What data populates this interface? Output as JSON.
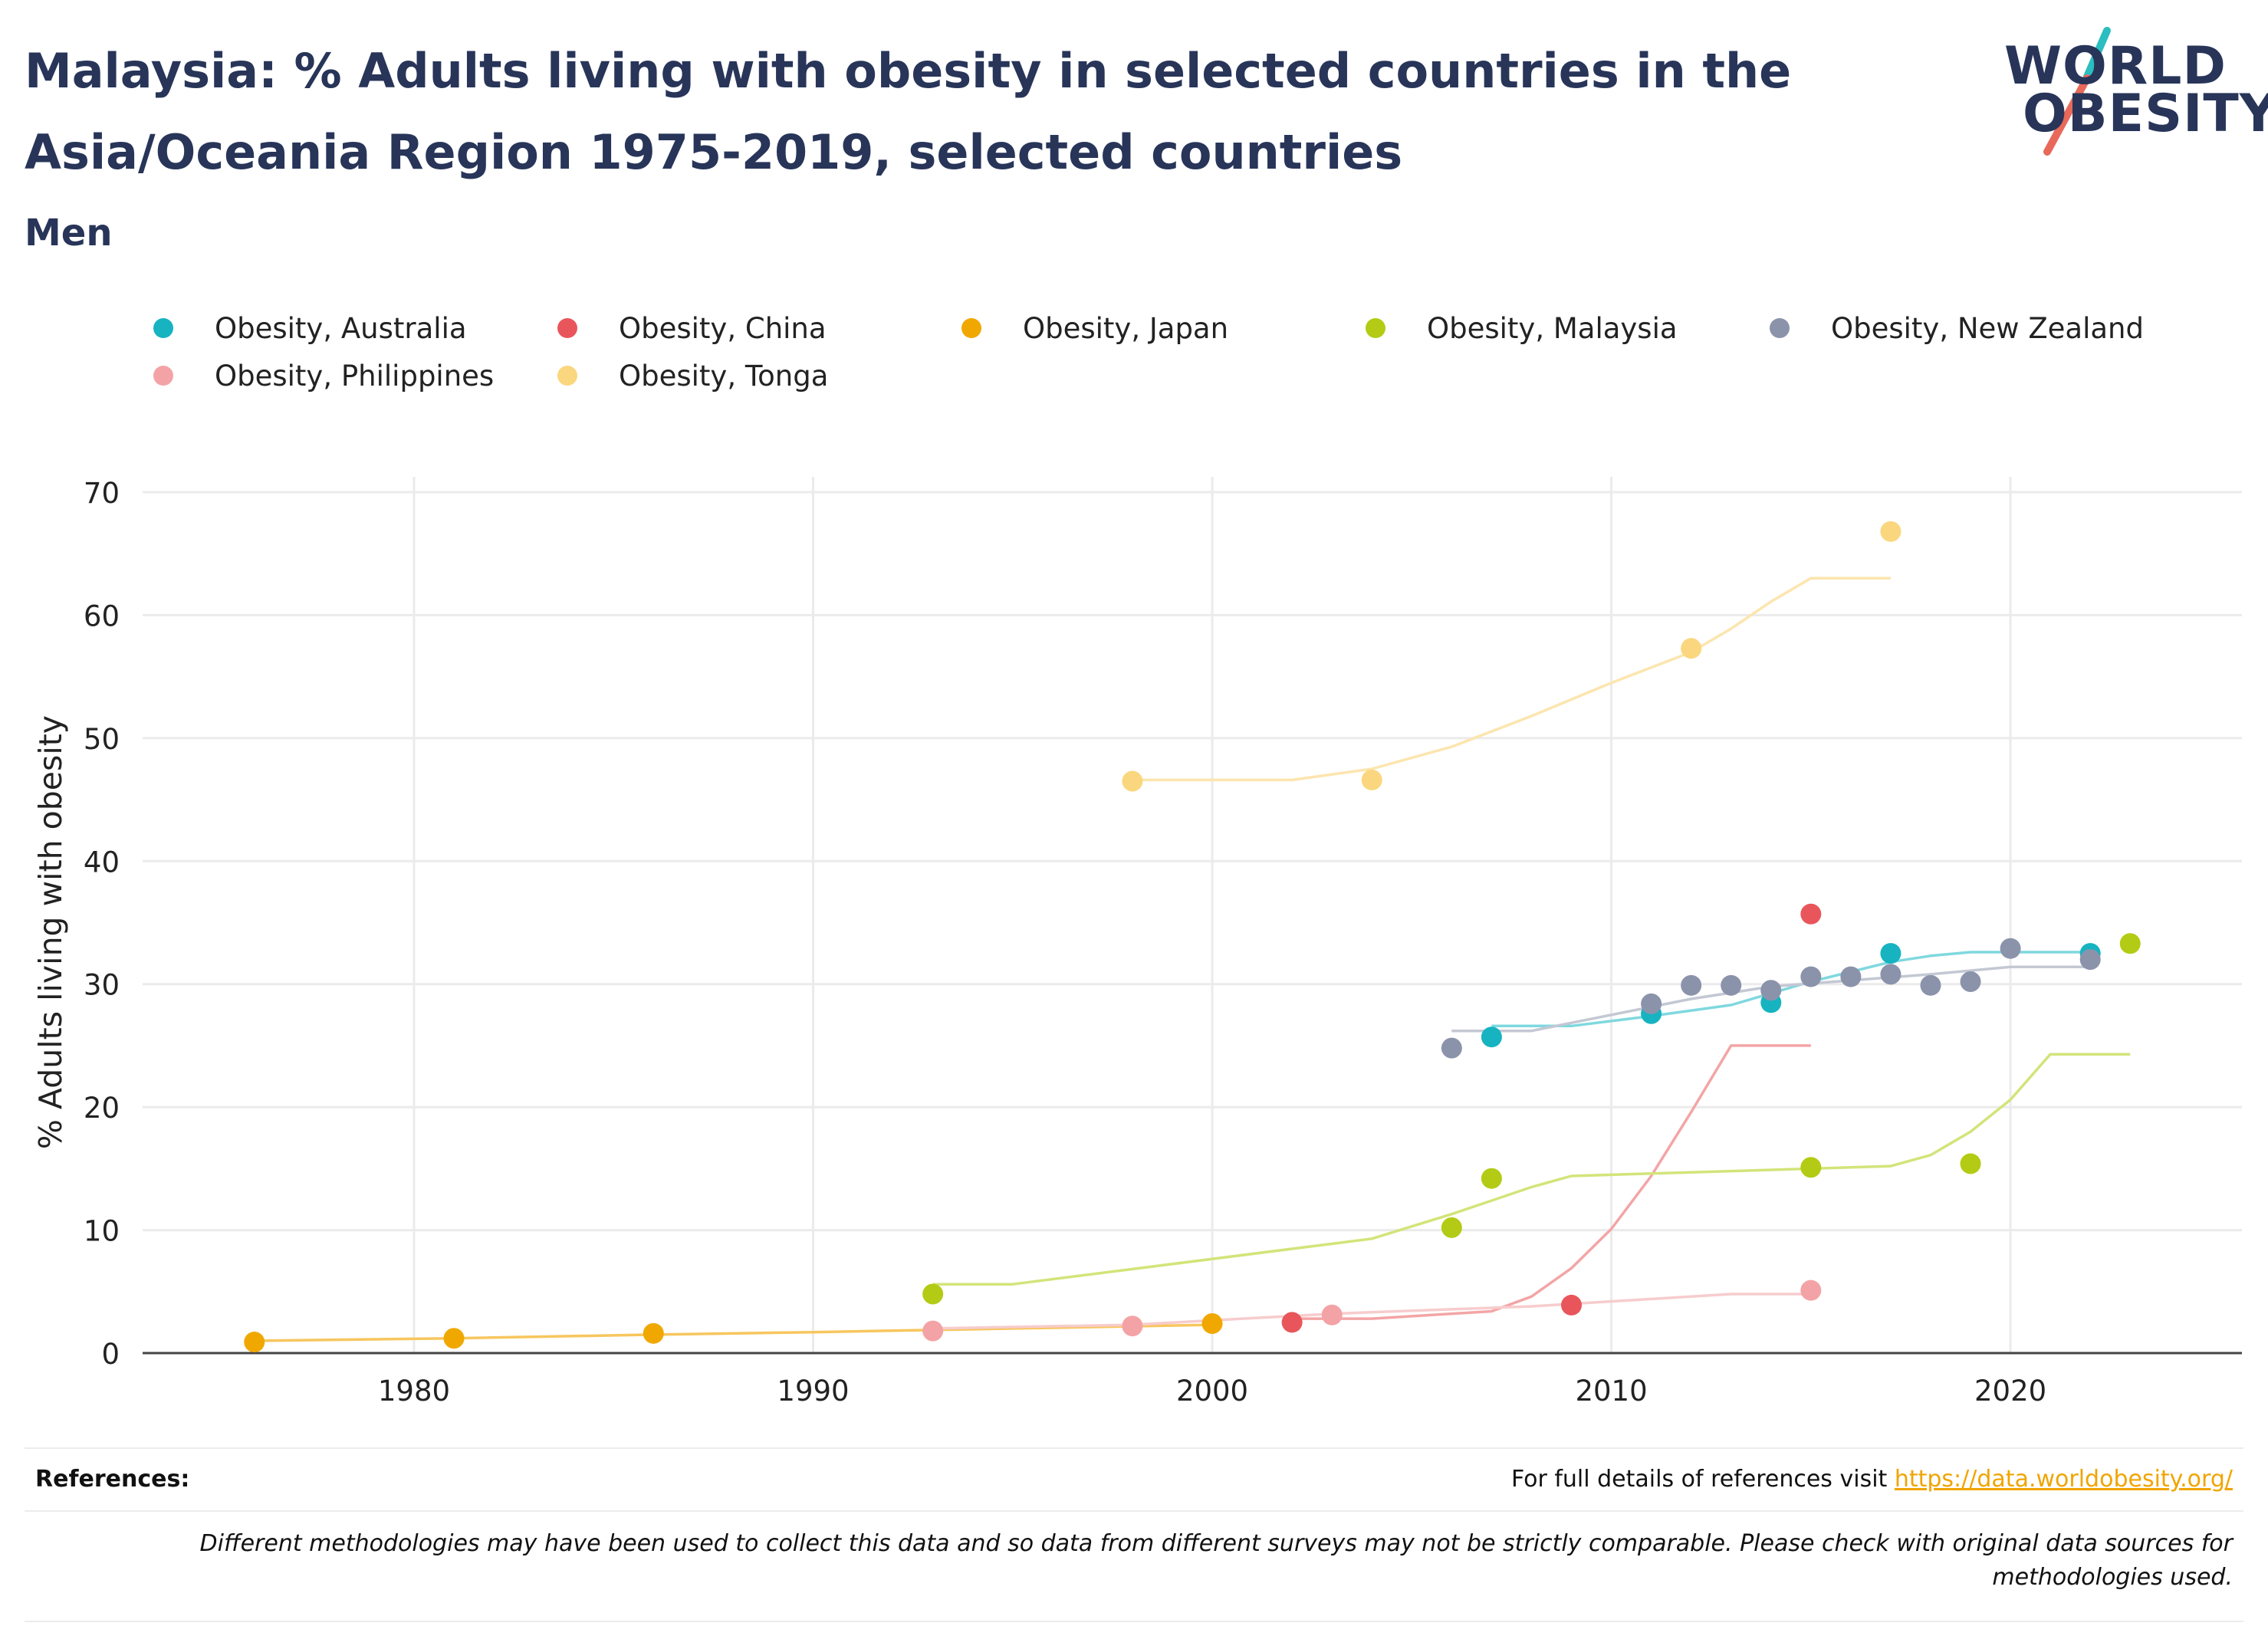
{
  "header": {
    "title": "Malaysia: % Adults living with obesity in selected countries in the Asia/Oceania Region 1975-2019, selected countries",
    "subtitle": "Men",
    "logo_line1": "WORLD",
    "logo_line2": "OBESITY",
    "logo_colors": {
      "text": "#283559",
      "slash_top": "#2bbdc0",
      "slash_bottom": "#e8695a"
    }
  },
  "footer": {
    "references_label": "References:",
    "references_text": "For full details of references visit",
    "references_link": "https://data.worldobesity.org/",
    "disclaimer": "Different methodologies may have been used to collect this data and so data from different surveys may not be strictly comparable. Please check with original data sources for methodologies used."
  },
  "chart_data": {
    "type": "scatter",
    "ylabel": "% Adults living with obesity",
    "xlabel": "",
    "xlim": [
      1973.2,
      2025.8
    ],
    "ylim": [
      0,
      70
    ],
    "x_ticks": [
      1980,
      1990,
      2000,
      2010,
      2020
    ],
    "y_ticks": [
      0,
      10,
      20,
      30,
      40,
      50,
      60,
      70
    ],
    "grid": true,
    "legend_position": "top",
    "series": [
      {
        "name": "Obesity, Australia",
        "color": "#17b3c1",
        "line_color": "#7fd8df",
        "points": [
          [
            2007,
            25.7
          ],
          [
            2011,
            27.6
          ],
          [
            2014,
            28.5
          ],
          [
            2017,
            32.5
          ],
          [
            2022,
            32.5
          ]
        ],
        "trend": [
          [
            2007,
            26.6
          ],
          [
            2009,
            26.6
          ],
          [
            2011,
            27.4
          ],
          [
            2013,
            28.3
          ],
          [
            2015,
            30.2
          ],
          [
            2017,
            31.8
          ],
          [
            2018,
            32.3
          ],
          [
            2019,
            32.6
          ],
          [
            2020,
            32.6
          ],
          [
            2022,
            32.6
          ]
        ]
      },
      {
        "name": "Obesity, China",
        "color": "#e8565c",
        "line_color": "#f3a5a6",
        "points": [
          [
            2002,
            2.5
          ],
          [
            2009,
            3.9
          ],
          [
            2015,
            35.7
          ]
        ],
        "trend": [
          [
            2002,
            2.8
          ],
          [
            2004,
            2.8
          ],
          [
            2005,
            3.0
          ],
          [
            2007,
            3.4
          ],
          [
            2008,
            4.6
          ],
          [
            2009,
            6.9
          ],
          [
            2010,
            10.1
          ],
          [
            2011,
            14.4
          ],
          [
            2012,
            19.6
          ],
          [
            2013,
            25.0
          ],
          [
            2015,
            25.0
          ]
        ]
      },
      {
        "name": "Obesity, Japan",
        "color": "#f0a800",
        "line_color": "#f7c65e",
        "points": [
          [
            1976,
            0.9
          ],
          [
            1981,
            1.2
          ],
          [
            1986,
            1.6
          ],
          [
            2000,
            2.4
          ]
        ],
        "trend": [
          [
            1976,
            1.0
          ],
          [
            1981,
            1.2
          ],
          [
            1986,
            1.5
          ],
          [
            1990,
            1.7
          ],
          [
            1995,
            2.0
          ],
          [
            2000,
            2.3
          ]
        ]
      },
      {
        "name": "Obesity, Malaysia",
        "color": "#b3cb14",
        "line_color": "#d3e479",
        "points": [
          [
            1993,
            4.8
          ],
          [
            2006,
            10.2
          ],
          [
            2007,
            14.2
          ],
          [
            2015,
            15.1
          ],
          [
            2019,
            15.4
          ],
          [
            2023,
            33.3
          ]
        ],
        "trend": [
          [
            1993,
            5.6
          ],
          [
            1995,
            5.6
          ],
          [
            2004,
            9.3
          ],
          [
            2006,
            11.3
          ],
          [
            2007,
            12.4
          ],
          [
            2008,
            13.5
          ],
          [
            2009,
            14.4
          ],
          [
            2011,
            14.6
          ],
          [
            2015,
            15.0
          ],
          [
            2017,
            15.2
          ],
          [
            2018,
            16.1
          ],
          [
            2019,
            18.0
          ],
          [
            2020,
            20.6
          ],
          [
            2021,
            24.3
          ],
          [
            2023,
            24.3
          ]
        ]
      },
      {
        "name": "Obesity, New Zealand",
        "color": "#8b93ab",
        "line_color": "#c3c8d3",
        "points": [
          [
            2006,
            24.8
          ],
          [
            2011,
            28.4
          ],
          [
            2012,
            29.9
          ],
          [
            2013,
            29.9
          ],
          [
            2014,
            29.5
          ],
          [
            2015,
            30.6
          ],
          [
            2016,
            30.6
          ],
          [
            2017,
            30.8
          ],
          [
            2018,
            29.9
          ],
          [
            2019,
            30.2
          ],
          [
            2020,
            32.9
          ],
          [
            2022,
            32.0
          ]
        ],
        "trend": [
          [
            2006,
            26.2
          ],
          [
            2008,
            26.2
          ],
          [
            2010,
            27.5
          ],
          [
            2012,
            28.8
          ],
          [
            2014,
            29.8
          ],
          [
            2016,
            30.3
          ],
          [
            2018,
            30.8
          ],
          [
            2020,
            31.4
          ],
          [
            2022,
            31.4
          ]
        ]
      },
      {
        "name": "Obesity, Philippines",
        "color": "#f3a3a6",
        "line_color": "#f7cccd",
        "points": [
          [
            1993,
            1.8
          ],
          [
            1998,
            2.2
          ],
          [
            2003,
            3.1
          ],
          [
            2015,
            5.1
          ]
        ],
        "trend": [
          [
            1993,
            2.0
          ],
          [
            1998,
            2.3
          ],
          [
            2003,
            3.2
          ],
          [
            2008,
            3.8
          ],
          [
            2013,
            4.8
          ],
          [
            2015,
            4.8
          ]
        ]
      },
      {
        "name": "Obesity, Tonga",
        "color": "#fad77e",
        "line_color": "#fce5ae",
        "points": [
          [
            1998,
            46.5
          ],
          [
            2004,
            46.6
          ],
          [
            2012,
            57.3
          ],
          [
            2017,
            66.8
          ]
        ],
        "trend": [
          [
            1998,
            46.6
          ],
          [
            2002,
            46.6
          ],
          [
            2004,
            47.5
          ],
          [
            2006,
            49.3
          ],
          [
            2008,
            51.8
          ],
          [
            2010,
            54.5
          ],
          [
            2012,
            57.0
          ],
          [
            2013,
            58.9
          ],
          [
            2014,
            61.1
          ],
          [
            2015,
            63.0
          ],
          [
            2017,
            63.0
          ]
        ]
      }
    ]
  }
}
